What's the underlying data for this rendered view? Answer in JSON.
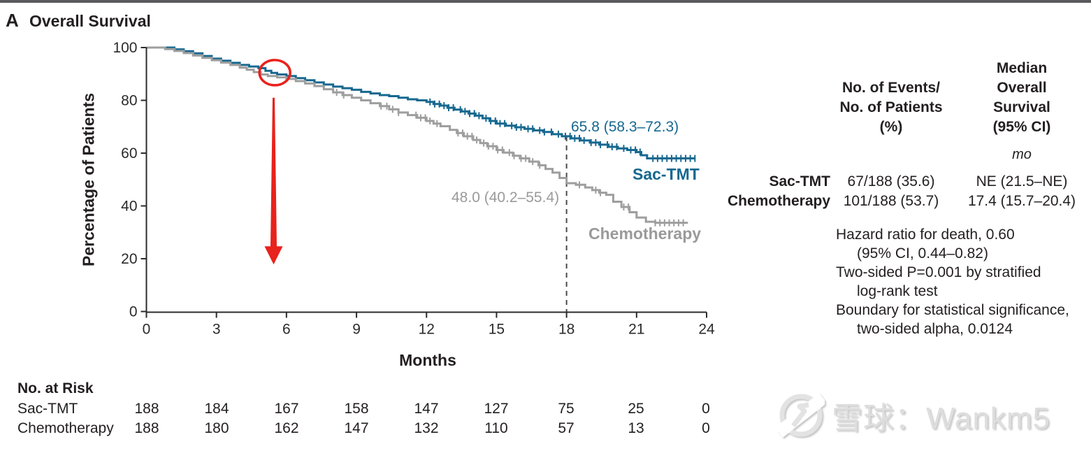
{
  "panel": {
    "letter": "A",
    "title": "Overall Survival"
  },
  "summary_table": {
    "col1_header_lines": [
      "No. of Events/",
      "No. of Patients",
      "(%)"
    ],
    "col2_header_lines": [
      "Median",
      "Overall",
      "Survival",
      "(95% CI)"
    ],
    "unit": "mo",
    "rows": [
      {
        "label": "Sac-TMT",
        "events": "67/188 (35.6)",
        "median": "NE (21.5–NE)"
      },
      {
        "label": "Chemotherapy",
        "events": "101/188 (53.7)",
        "median": "17.4 (15.7–20.4)"
      }
    ]
  },
  "stats_lines": [
    "Hazard ratio for death, 0.60",
    "(95% CI, 0.44–0.82)",
    "Two-sided P=0.001 by stratified",
    "log-rank test",
    "Boundary for statistical significance,",
    "two-sided alpha, 0.0124"
  ],
  "risk_table": {
    "header": "No. at Risk",
    "rows": [
      {
        "label": "Sac-TMT",
        "counts": [
          188,
          184,
          167,
          158,
          147,
          127,
          75,
          25,
          0
        ]
      },
      {
        "label": "Chemotherapy",
        "counts": [
          188,
          180,
          162,
          147,
          132,
          110,
          57,
          13,
          0
        ]
      }
    ]
  },
  "watermark": {
    "text": "雪球：Wankm5",
    "icon": "xueqiu-logo"
  },
  "colors": {
    "sac_tmt": "#16688f",
    "chemotherapy": "#9e9e9e",
    "red_annotation": "#e8221c",
    "axis": "#2b2b2b",
    "dashline": "#4a4a4a"
  },
  "chart_data": {
    "type": "line",
    "subtype": "kaplan-meier-step",
    "title": "Overall Survival",
    "xlabel": "Months",
    "ylabel": "Percentage of Patients",
    "xlim": [
      0,
      24
    ],
    "ylim": [
      0,
      100
    ],
    "x_ticks": [
      0,
      3,
      6,
      9,
      12,
      15,
      18,
      21,
      24
    ],
    "y_ticks": [
      0,
      20,
      40,
      60,
      80,
      100
    ],
    "grid": false,
    "legend_position": "labels-on-curves",
    "annotations": {
      "sac_tmt_rate_label": "65.8 (58.3–72.3)",
      "chemo_rate_label": "48.0 (40.2–55.4)",
      "landmark_month": 18,
      "red_circle": {
        "month": 5.5,
        "value": 90.5
      },
      "red_arrow": {
        "month": 5.45,
        "from_value": 81,
        "to_value": 17.8
      }
    },
    "series": [
      {
        "name": "Sac-TMT",
        "color": "#16688f",
        "points": [
          [
            0,
            100
          ],
          [
            1.2,
            99.3
          ],
          [
            1.6,
            98.6
          ],
          [
            2,
            97.8
          ],
          [
            2.4,
            96.8
          ],
          [
            2.8,
            95.8
          ],
          [
            3.2,
            95
          ],
          [
            3.6,
            94.2
          ],
          [
            4,
            93.4
          ],
          [
            4.4,
            92.8
          ],
          [
            4.8,
            92.2
          ],
          [
            5.1,
            91.2
          ],
          [
            5.35,
            90.4
          ],
          [
            5.6,
            89.8
          ],
          [
            6,
            89.2
          ],
          [
            6.4,
            88.4
          ],
          [
            6.8,
            87.6
          ],
          [
            7.2,
            86.8
          ],
          [
            7.6,
            86
          ],
          [
            8,
            85.2
          ],
          [
            8.4,
            84.6
          ],
          [
            8.8,
            84
          ],
          [
            9.2,
            83.2
          ],
          [
            9.6,
            82.6
          ],
          [
            10,
            82
          ],
          [
            10.4,
            81.6
          ],
          [
            10.8,
            81
          ],
          [
            11.2,
            80.4
          ],
          [
            11.6,
            80
          ],
          [
            12,
            79.4
          ],
          [
            12.3,
            78.6
          ],
          [
            12.6,
            78
          ],
          [
            12.9,
            77.2
          ],
          [
            13.2,
            76.5
          ],
          [
            13.5,
            75.8
          ],
          [
            13.8,
            75
          ],
          [
            14.1,
            74.2
          ],
          [
            14.4,
            73.2
          ],
          [
            14.7,
            72.2
          ],
          [
            15,
            71.2
          ],
          [
            15.4,
            70.4
          ],
          [
            15.8,
            69.8
          ],
          [
            16.2,
            69.2
          ],
          [
            16.6,
            68.6
          ],
          [
            17,
            68
          ],
          [
            17.4,
            67.2
          ],
          [
            17.8,
            66.4
          ],
          [
            18.2,
            65.6
          ],
          [
            18.6,
            64.8
          ],
          [
            19,
            64
          ],
          [
            19.4,
            63.2
          ],
          [
            19.8,
            62.4
          ],
          [
            20.2,
            61.8
          ],
          [
            20.6,
            61.2
          ],
          [
            21,
            60.4
          ],
          [
            21.2,
            59.2
          ],
          [
            21.45,
            58
          ],
          [
            23.5,
            58
          ]
        ],
        "censor_months": [
          12.15,
          12.35,
          12.55,
          12.75,
          12.95,
          13.15,
          13.45,
          13.65,
          13.85,
          14.05,
          14.25,
          14.55,
          14.75,
          14.95,
          15.15,
          15.35,
          15.65,
          15.85,
          16.05,
          16.35,
          16.55,
          16.85,
          17.05,
          17.35,
          17.65,
          17.95,
          18.15,
          18.35,
          18.55,
          18.75,
          19.05,
          19.25,
          19.45,
          19.75,
          19.95,
          20.15,
          20.45,
          20.75,
          20.95,
          21.15,
          21.7,
          21.9,
          22.1,
          22.3,
          22.5,
          22.7,
          22.9,
          23.1,
          23.3,
          23.5
        ]
      },
      {
        "name": "Chemotherapy",
        "color": "#9e9e9e",
        "points": [
          [
            0,
            100
          ],
          [
            0.8,
            99.4
          ],
          [
            1.2,
            98.7
          ],
          [
            1.6,
            97.9
          ],
          [
            2,
            97
          ],
          [
            2.4,
            96.1
          ],
          [
            2.8,
            95.2
          ],
          [
            3.2,
            94.3
          ],
          [
            3.6,
            93.4
          ],
          [
            4,
            92.4
          ],
          [
            4.3,
            91.6
          ],
          [
            4.6,
            90.7
          ],
          [
            4.9,
            89.8
          ],
          [
            5.2,
            89.2
          ],
          [
            5.6,
            88.7
          ],
          [
            6,
            88.1
          ],
          [
            6.4,
            87.3
          ],
          [
            6.8,
            86.4
          ],
          [
            7.2,
            85.4
          ],
          [
            7.6,
            84.2
          ],
          [
            8,
            83
          ],
          [
            8.4,
            82
          ],
          [
            8.8,
            81
          ],
          [
            9.2,
            80
          ],
          [
            9.6,
            78.9
          ],
          [
            10,
            77.8
          ],
          [
            10.4,
            76.6
          ],
          [
            10.8,
            75.4
          ],
          [
            11.2,
            74.4
          ],
          [
            11.6,
            73.4
          ],
          [
            12,
            72.2
          ],
          [
            12.3,
            71.2
          ],
          [
            12.6,
            70.2
          ],
          [
            13,
            68.8
          ],
          [
            13.3,
            67.6
          ],
          [
            13.6,
            66.4
          ],
          [
            14,
            65
          ],
          [
            14.3,
            63.8
          ],
          [
            14.6,
            62.6
          ],
          [
            15,
            61.2
          ],
          [
            15.3,
            60.2
          ],
          [
            15.7,
            59
          ],
          [
            16,
            58
          ],
          [
            16.4,
            56.8
          ],
          [
            16.8,
            55.4
          ],
          [
            17.1,
            54
          ],
          [
            17.4,
            52.6
          ],
          [
            17.7,
            50.6
          ],
          [
            18,
            48.6
          ],
          [
            18.4,
            48
          ],
          [
            18.8,
            47
          ],
          [
            19.1,
            46
          ],
          [
            19.4,
            45
          ],
          [
            19.7,
            44.2
          ],
          [
            20,
            41.6
          ],
          [
            20.35,
            39.6
          ],
          [
            20.7,
            37.6
          ],
          [
            21,
            35.6
          ],
          [
            21.4,
            34
          ],
          [
            21.8,
            33.6
          ],
          [
            23.2,
            33.6
          ]
        ],
        "censor_months": [
          8.15,
          8.45,
          10.05,
          10.3,
          10.55,
          10.8,
          11.55,
          11.75,
          11.95,
          12.15,
          12.45,
          13.35,
          13.55,
          13.75,
          13.95,
          14.15,
          14.45,
          14.65,
          14.85,
          15.05,
          15.25,
          15.55,
          15.75,
          16.05,
          16.25,
          16.55,
          16.85,
          18.55,
          19.25,
          19.45,
          20.45,
          20.65,
          21.8,
          22,
          22.2,
          22.4,
          22.6,
          22.8,
          23
        ]
      }
    ]
  }
}
